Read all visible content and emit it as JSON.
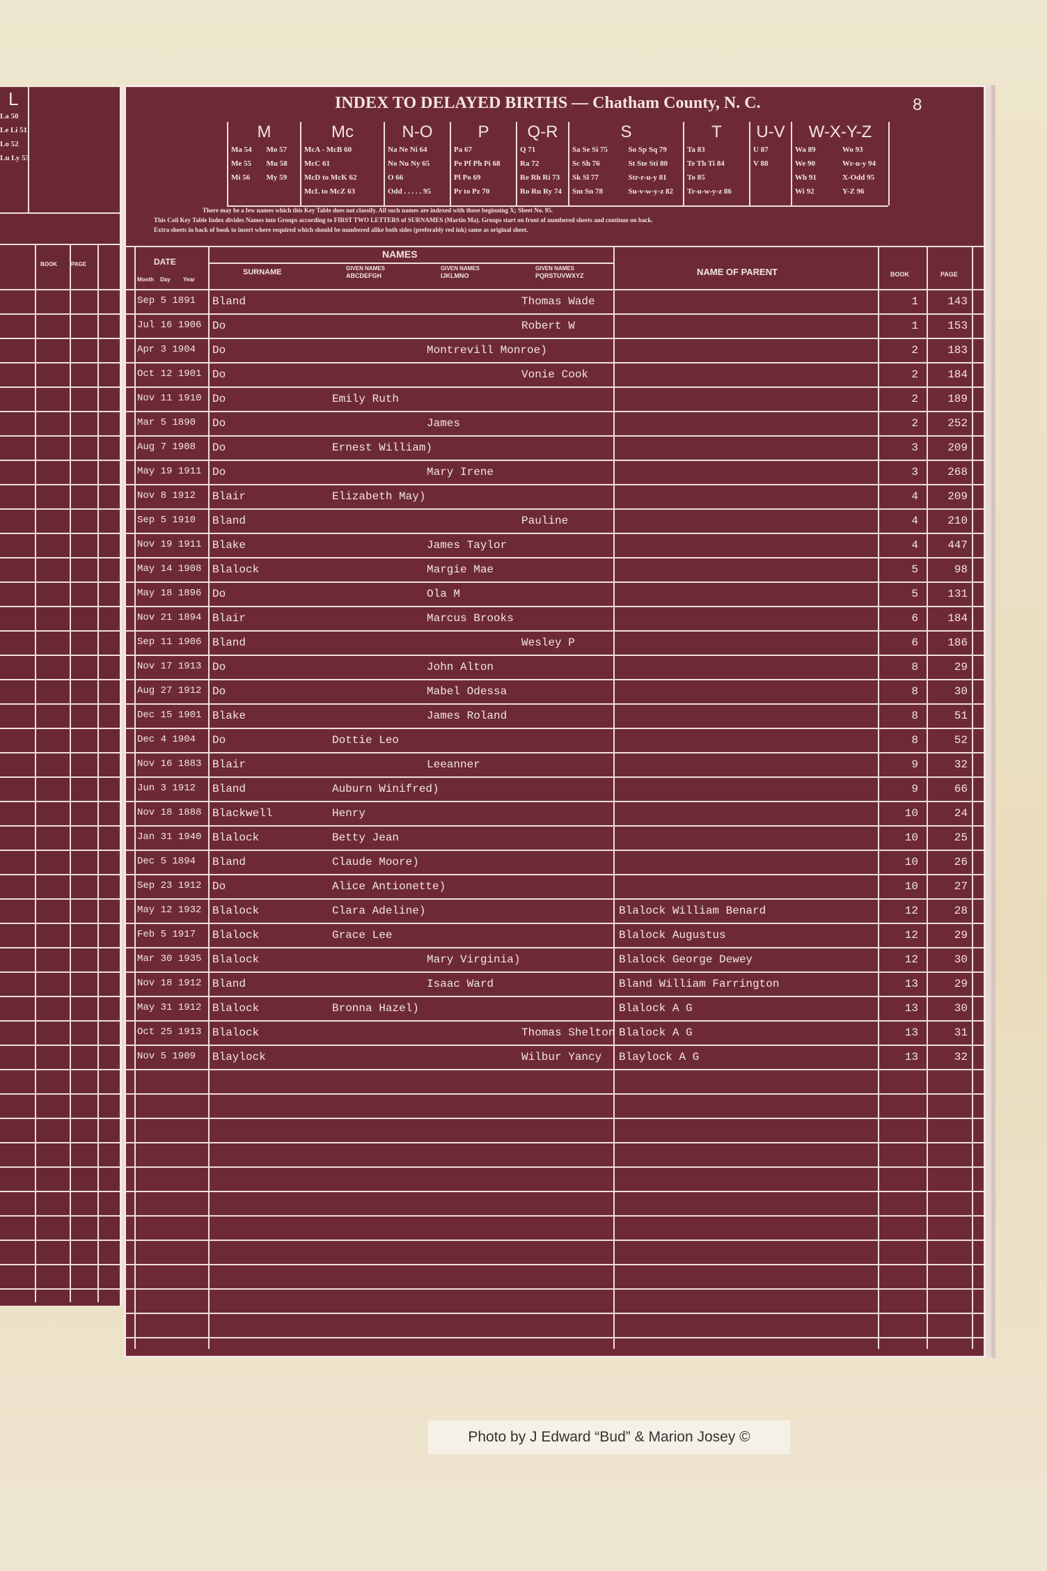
{
  "header": {
    "title": "INDEX TO DELAYED BIRTHS — Chatham County, N. C.",
    "page_number": "8"
  },
  "left_page": {
    "group": "L",
    "entries": [
      "La 50",
      "Le Li 51",
      "Lo 52",
      "Lu Ly 53"
    ],
    "columns": [
      "BOOK",
      "PAGE"
    ]
  },
  "key_table": {
    "groups": [
      {
        "heading": "M",
        "entries": [
          "Ma 54",
          "Me 55",
          "Mi 56",
          "Mo 57",
          "Mu 58",
          "My 59"
        ]
      },
      {
        "heading": "Mc",
        "entries": [
          "McA - McB 60",
          "McC 61",
          "McD to McK 62",
          "McL to McZ 63"
        ]
      },
      {
        "heading": "N-O",
        "entries": [
          "Na Ne Ni 64",
          "No Nu Ny 65",
          "O 66",
          "Odd . . . . . 95"
        ]
      },
      {
        "heading": "P",
        "entries": [
          "Pa 67",
          "Pe Pf Ph Pi 68",
          "Pl Po 69",
          "Pr to Pz 70"
        ]
      },
      {
        "heading": "Q-R",
        "entries": [
          "Q 71",
          "Ra 72",
          "Re Rh Ri 73",
          "Ro Ru Ry 74"
        ]
      },
      {
        "heading": "S",
        "entries": [
          "Sa Se Si 75",
          "Sc Sh 76",
          "Sk Sl 77",
          "Sm Sn 78",
          "So Sp Sq 79",
          "St Ste Sti 80",
          "Str-r-u-y 81",
          "Su-v-w-y-z 82"
        ]
      },
      {
        "heading": "T",
        "entries": [
          "Ta 83",
          "Te Th Ti 84",
          "To 85",
          "Tr-u-w-y-z 86"
        ]
      },
      {
        "heading": "U-V",
        "entries": [
          "U 87",
          "V 88"
        ]
      },
      {
        "heading": "W-X-Y-Z",
        "entries": [
          "Wa 89",
          "We 90",
          "Wh 91",
          "Wi 92",
          "Wo 93",
          "Wr-u-y 94",
          "X-Odd 95",
          "Y-Z 96"
        ]
      }
    ],
    "notes": [
      "There may be a few names which this Key Table does not classify. All such names are indexed with those beginning X; Sheet No. 95.",
      "This Coil Key Table Index divides Names into Groups according to FIRST TWO LETTERS of SURNAMES (Martin Ma). Groups start on front of numbered sheets and continue on back.",
      "Extra sheets in back of book to insert where required which should be numbered alike both sides (preferably red ink) same as original sheet."
    ]
  },
  "columns": {
    "date": "DATE",
    "date_parts": [
      "Month",
      "Day",
      "Year"
    ],
    "names": "NAMES",
    "surname": "SURNAME",
    "given_names": [
      {
        "label": "GIVEN NAMES",
        "letters": "ABCDEFGH"
      },
      {
        "label": "GIVEN NAMES",
        "letters": "IJKLMNO"
      },
      {
        "label": "GIVEN NAMES",
        "letters": "PQRSTUVWXYZ"
      }
    ],
    "parent": "NAME OF PARENT",
    "book": "BOOK",
    "page": "PAGE"
  },
  "rows": [
    {
      "date": "Sep 5 1891",
      "surname": "Bland",
      "given": "Thomas Wade",
      "book": 1,
      "page": 143
    },
    {
      "date": "Jul 16 1906",
      "surname": "Do",
      "given": "Robert W",
      "book": 1,
      "page": 153
    },
    {
      "date": "Apr 3 1904",
      "surname": "Do",
      "given": "Montrevill Monroe)",
      "book": 2,
      "page": 183
    },
    {
      "date": "Oct 12 1901",
      "surname": "Do",
      "given": "Vonie Cook",
      "book": 2,
      "page": 184
    },
    {
      "date": "Nov 11 1910",
      "surname": "Do",
      "given": "Emily Ruth",
      "book": 2,
      "page": 189
    },
    {
      "date": "Mar 5 1890",
      "surname": "Do",
      "given": "James",
      "book": 2,
      "page": 252
    },
    {
      "date": "Aug 7 1908",
      "surname": "Do",
      "given": "Ernest William)",
      "book": 3,
      "page": 209
    },
    {
      "date": "May 19 1911",
      "surname": "Do",
      "given": "Mary Irene",
      "book": 3,
      "page": 268
    },
    {
      "date": "Nov 8 1912",
      "surname": "Blair",
      "given": "Elizabeth May)",
      "book": 4,
      "page": 209
    },
    {
      "date": "Sep 5 1910",
      "surname": "Bland",
      "given": "Pauline",
      "book": 4,
      "page": 210
    },
    {
      "date": "Nov 19 1911",
      "surname": "Blake",
      "given": "James Taylor",
      "book": 4,
      "page": 447
    },
    {
      "date": "May 14 1908",
      "surname": "Blalock",
      "given": "Margie Mae",
      "book": 5,
      "page": 98
    },
    {
      "date": "May 18 1896",
      "surname": "Do",
      "given": "Ola M",
      "book": 5,
      "page": 131
    },
    {
      "date": "Nov 21 1894",
      "surname": "Blair",
      "given": "Marcus Brooks",
      "book": 6,
      "page": 184
    },
    {
      "date": "Sep 11 1906",
      "surname": "Bland",
      "given": "Wesley P",
      "book": 6,
      "page": 186
    },
    {
      "date": "Nov 17 1913",
      "surname": "Do",
      "given": "John Alton",
      "book": 8,
      "page": 29
    },
    {
      "date": "Aug 27 1912",
      "surname": "Do",
      "given": "Mabel Odessa",
      "book": 8,
      "page": 30
    },
    {
      "date": "Dec 15 1901",
      "surname": "Blake",
      "given": "James Roland",
      "book": 8,
      "page": 51
    },
    {
      "date": "Dec 4 1904",
      "surname": "Do",
      "given": "Dottie Leo",
      "book": 8,
      "page": 52
    },
    {
      "date": "Nov 16 1883",
      "surname": "Blair",
      "given": "Leeanner",
      "book": 9,
      "page": 32
    },
    {
      "date": "Jun 3 1912",
      "surname": "Bland",
      "given": "Auburn Winifred)",
      "book": 9,
      "page": 66
    },
    {
      "date": "Nov 18 1888",
      "surname": "Blackwell",
      "given": "Henry",
      "book": 10,
      "page": 24
    },
    {
      "date": "Jan 31 1940",
      "surname": "Blalock",
      "given": "Betty Jean",
      "book": 10,
      "page": 25
    },
    {
      "date": "Dec 5 1894",
      "surname": "Bland",
      "given": "Claude Moore)",
      "book": 10,
      "page": 26
    },
    {
      "date": "Sep 23 1912",
      "surname": "Do",
      "given": "Alice Antionette)",
      "book": 10,
      "page": 27
    },
    {
      "date": "May 12 1932",
      "surname": "Blalock",
      "given": "Clara Adeline)",
      "parent": "Blalock William Benard",
      "book": 12,
      "page": 28
    },
    {
      "date": "Feb 5 1917",
      "surname": "Blalock",
      "given": "Grace Lee",
      "parent": "Blalock Augustus",
      "book": 12,
      "page": 29
    },
    {
      "date": "Mar 30 1935",
      "surname": "Blalock",
      "given": "Mary Virginia)",
      "parent": "Blalock George Dewey",
      "book": 12,
      "page": 30
    },
    {
      "date": "Nov 18 1912",
      "surname": "Bland",
      "given": "Isaac Ward",
      "parent": "Bland William Farrington",
      "book": 13,
      "page": 29
    },
    {
      "date": "May 31 1912",
      "surname": "Blalock",
      "given": "Bronna Hazel)",
      "parent": "Blalock A G",
      "book": 13,
      "page": 30
    },
    {
      "date": "Oct 25 1913",
      "surname": "Blalock",
      "given": "Thomas Shelton",
      "parent": "Blalock A G",
      "book": 13,
      "page": 31
    },
    {
      "date": "Nov 5 1909",
      "surname": "Blaylock",
      "given": "Wilbur Yancy",
      "parent": "Blaylock A G",
      "book": 13,
      "page": 32
    }
  ],
  "caption": "Photo by J Edward “Bud” & Marion Josey ©"
}
